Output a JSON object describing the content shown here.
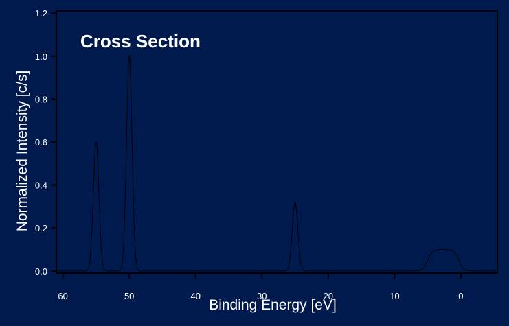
{
  "chart_data": {
    "type": "line",
    "title": "",
    "annotation": "Cross Section",
    "xlabel": "Binding Energy [eV]",
    "ylabel": "Normalized Intensity [c/s]",
    "xlim": [
      61,
      -5.5
    ],
    "ylim": [
      -0.01,
      1.21
    ],
    "x_ticks": [
      60,
      50,
      40,
      30,
      20,
      10,
      0
    ],
    "y_ticks": [
      0.0,
      0.2,
      0.4,
      0.6,
      0.8,
      1.0,
      1.2
    ],
    "x_tick_labels": [
      "60",
      "50",
      "40",
      "30",
      "20",
      "10",
      "0"
    ],
    "y_tick_labels": [
      "0.0",
      "0.2",
      "0.4",
      "0.6",
      "0.8",
      "1.0",
      "1.2"
    ],
    "grid": false,
    "series": [
      {
        "peaks": [
          {
            "center": 55,
            "height": 0.6
          },
          {
            "center": 50,
            "height": 1.0
          },
          {
            "center": 25,
            "height": 0.32
          }
        ],
        "band": {
          "from": 5.0,
          "to": 0.3,
          "height": 0.1
        }
      }
    ],
    "colors": {
      "background": "#001A4E",
      "frame": "#000000",
      "line": "#000000",
      "text": "#ffffff"
    }
  }
}
